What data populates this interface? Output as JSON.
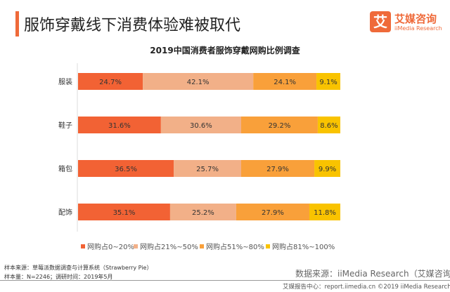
{
  "header": {
    "title": "服饰穿戴线下消费体验难被取代",
    "logo_mark": "艾",
    "logo_cn": "艾媒咨询",
    "logo_en": "iiMedia Research"
  },
  "chart_data": {
    "type": "bar",
    "orientation": "horizontal",
    "stacked": "100%",
    "title": "2019中国消费者服饰穿戴网购比例调查",
    "categories": [
      "服装",
      "鞋子",
      "箱包",
      "配饰"
    ],
    "series": [
      {
        "name": "网购占0~20%",
        "color": "#f26234",
        "values": [
          24.7,
          31.6,
          36.5,
          35.1
        ]
      },
      {
        "name": "网购占21%~50%",
        "color": "#f2b088",
        "values": [
          42.1,
          30.6,
          25.7,
          25.2
        ]
      },
      {
        "name": "网购占51%~80%",
        "color": "#f9a03a",
        "values": [
          24.1,
          29.2,
          27.9,
          27.9
        ]
      },
      {
        "name": "网购占81%~100%",
        "color": "#f9c300",
        "values": [
          9.1,
          8.6,
          9.9,
          11.8
        ]
      }
    ],
    "legend": "bottom"
  },
  "notes": {
    "sample_source": "样本来源：草莓派数据调查与计算系统（Strawberry  Pie）",
    "sample_size": "样本量：N=2246；调研时间：2019年5月",
    "data_source": "数据来源：iiMedia Research（艾媒咨询）",
    "footer": "艾媒报告中心：report.iimedia.cn  ©2019  iiMedia Research  Inc"
  }
}
